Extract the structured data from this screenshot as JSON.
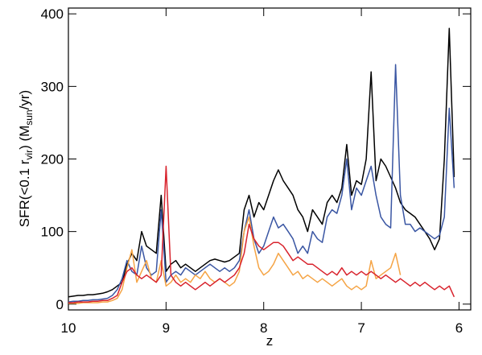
{
  "chart_data": {
    "type": "line",
    "xlabel": "z",
    "ylabel_parts": [
      "SFR(<0.1 r",
      "vir",
      ") (M",
      "sun",
      "/yr)"
    ],
    "xlim": [
      10,
      5.88
    ],
    "ylim": [
      -8,
      408
    ],
    "xticks": [
      10,
      9,
      8,
      7,
      6
    ],
    "yticks": [
      0,
      100,
      200,
      300,
      400
    ],
    "x": [
      10.0,
      9.95,
      9.9,
      9.85,
      9.8,
      9.75,
      9.7,
      9.65,
      9.6,
      9.55,
      9.5,
      9.45,
      9.4,
      9.35,
      9.3,
      9.25,
      9.2,
      9.15,
      9.1,
      9.05,
      9.0,
      8.95,
      8.9,
      8.85,
      8.8,
      8.75,
      8.7,
      8.65,
      8.6,
      8.55,
      8.5,
      8.45,
      8.4,
      8.35,
      8.3,
      8.25,
      8.2,
      8.15,
      8.1,
      8.05,
      8.0,
      7.95,
      7.9,
      7.85,
      7.8,
      7.75,
      7.7,
      7.65,
      7.6,
      7.55,
      7.5,
      7.45,
      7.4,
      7.35,
      7.3,
      7.25,
      7.2,
      7.15,
      7.1,
      7.05,
      7.0,
      6.95,
      6.9,
      6.85,
      6.8,
      6.75,
      6.7,
      6.65,
      6.6,
      6.55,
      6.5,
      6.45,
      6.4,
      6.35,
      6.3,
      6.25,
      6.2,
      6.15,
      6.1,
      6.05
    ],
    "series": [
      {
        "color": "#000000",
        "values": [
          10,
          11,
          12,
          12,
          13,
          13,
          14,
          15,
          17,
          20,
          25,
          30,
          55,
          70,
          60,
          100,
          80,
          75,
          70,
          150,
          45,
          55,
          60,
          50,
          55,
          50,
          45,
          50,
          55,
          60,
          62,
          60,
          58,
          60,
          65,
          70,
          130,
          150,
          120,
          140,
          130,
          150,
          170,
          185,
          170,
          160,
          150,
          130,
          120,
          100,
          130,
          120,
          110,
          140,
          150,
          140,
          160,
          220,
          150,
          170,
          165,
          200,
          320,
          170,
          200,
          190,
          175,
          160,
          140,
          130,
          125,
          120,
          110,
          100,
          90,
          75,
          90,
          200,
          380,
          175
        ]
      },
      {
        "color": "#3a56a3",
        "values": [
          3,
          4,
          4,
          5,
          5,
          6,
          6,
          7,
          8,
          12,
          20,
          35,
          60,
          45,
          40,
          80,
          50,
          40,
          45,
          130,
          30,
          40,
          45,
          40,
          50,
          45,
          40,
          45,
          50,
          55,
          50,
          45,
          50,
          45,
          50,
          60,
          100,
          130,
          90,
          70,
          80,
          100,
          120,
          105,
          110,
          100,
          90,
          70,
          80,
          70,
          100,
          90,
          85,
          120,
          130,
          125,
          150,
          200,
          130,
          160,
          150,
          170,
          190,
          150,
          120,
          110,
          105,
          330,
          150,
          110,
          110,
          100,
          105,
          100,
          95,
          90,
          95,
          120,
          270,
          160
        ]
      },
      {
        "color": "#f5a445",
        "values": [
          1,
          1,
          1,
          2,
          2,
          2,
          2,
          3,
          3,
          5,
          8,
          20,
          50,
          75,
          30,
          45,
          60,
          35,
          30,
          60,
          25,
          30,
          40,
          30,
          35,
          30,
          40,
          35,
          45,
          35,
          30,
          35,
          30,
          25,
          30,
          45,
          100,
          120,
          80,
          50,
          40,
          45,
          55,
          70,
          60,
          50,
          40,
          45,
          35,
          40,
          35,
          30,
          35,
          30,
          25,
          30,
          35,
          25,
          20,
          25,
          20,
          25,
          60,
          35,
          40,
          45,
          50,
          70,
          40,
          null,
          null,
          null,
          null,
          null,
          null,
          null,
          null,
          null,
          null,
          null
        ]
      },
      {
        "color": "#d8222c",
        "values": [
          2,
          2,
          3,
          3,
          3,
          4,
          4,
          5,
          5,
          8,
          12,
          30,
          45,
          50,
          40,
          35,
          40,
          35,
          30,
          40,
          190,
          40,
          30,
          25,
          30,
          25,
          20,
          25,
          30,
          25,
          30,
          35,
          30,
          35,
          40,
          50,
          70,
          110,
          90,
          80,
          75,
          80,
          85,
          85,
          80,
          70,
          60,
          65,
          60,
          55,
          55,
          50,
          45,
          40,
          45,
          40,
          50,
          40,
          45,
          40,
          45,
          40,
          45,
          40,
          35,
          40,
          35,
          30,
          35,
          30,
          25,
          30,
          25,
          30,
          25,
          20,
          25,
          20,
          25,
          10
        ]
      }
    ]
  }
}
